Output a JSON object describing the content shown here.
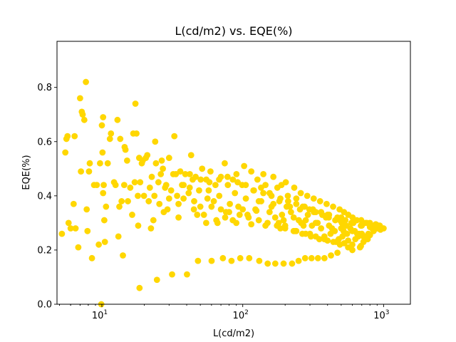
{
  "chart_data": {
    "type": "scatter",
    "title": "L(cd/m2) vs. EQE(%)",
    "xlabel": "L(cd/m2)",
    "ylabel": "EQE(%)",
    "xscale": "log",
    "xlim": [
      4.8,
      1550
    ],
    "ylim": [
      0,
      0.97
    ],
    "grid": false,
    "marker_color": "#FFD700",
    "x_tick_labels": [
      {
        "value": 10,
        "base": "10",
        "exp": "1"
      },
      {
        "value": 100,
        "base": "10",
        "exp": "2"
      },
      {
        "value": 1000,
        "base": "10",
        "exp": "3"
      }
    ],
    "y_tick_labels": [
      "0.0",
      "0.2",
      "0.4",
      "0.6",
      "0.8"
    ],
    "y_tick_values": [
      0.0,
      0.2,
      0.4,
      0.6,
      0.8
    ],
    "points": [
      [
        5.2,
        0.26
      ],
      [
        5.5,
        0.56
      ],
      [
        5.6,
        0.61
      ],
      [
        5.7,
        0.62
      ],
      [
        5.8,
        0.3
      ],
      [
        6.0,
        0.28
      ],
      [
        6.3,
        0.37
      ],
      [
        6.4,
        0.62
      ],
      [
        6.5,
        0.28
      ],
      [
        6.8,
        0.21
      ],
      [
        7.0,
        0.76
      ],
      [
        7.1,
        0.49
      ],
      [
        7.2,
        0.71
      ],
      [
        7.3,
        0.7
      ],
      [
        7.5,
        0.68
      ],
      [
        7.7,
        0.82
      ],
      [
        7.8,
        0.35
      ],
      [
        7.9,
        0.27
      ],
      [
        8.1,
        0.49
      ],
      [
        8.2,
        0.52
      ],
      [
        8.5,
        0.17
      ],
      [
        8.8,
        0.44
      ],
      [
        9.2,
        0.44
      ],
      [
        9.5,
        0.22
      ],
      [
        9.7,
        0.52
      ],
      [
        9.9,
        0.0
      ],
      [
        10.0,
        0.66
      ],
      [
        10.1,
        0.56
      ],
      [
        10.2,
        0.69
      ],
      [
        10.2,
        0.41
      ],
      [
        10.3,
        0.44
      ],
      [
        10.4,
        0.31
      ],
      [
        10.5,
        0.23
      ],
      [
        10.7,
        0.36
      ],
      [
        11.0,
        0.52
      ],
      [
        11.4,
        0.61
      ],
      [
        11.6,
        0.63
      ],
      [
        12.2,
        0.45
      ],
      [
        12.5,
        0.44
      ],
      [
        12.9,
        0.68
      ],
      [
        13.1,
        0.25
      ],
      [
        13.3,
        0.36
      ],
      [
        13.5,
        0.61
      ],
      [
        13.8,
        0.38
      ],
      [
        14.1,
        0.18
      ],
      [
        14.4,
        0.44
      ],
      [
        14.5,
        0.58
      ],
      [
        14.7,
        0.57
      ],
      [
        15.1,
        0.53
      ],
      [
        15.3,
        0.38
      ],
      [
        15.9,
        0.43
      ],
      [
        16.4,
        0.33
      ],
      [
        16.7,
        0.63
      ],
      [
        17.1,
        0.45
      ],
      [
        17.3,
        0.74
      ],
      [
        17.6,
        0.63
      ],
      [
        18.0,
        0.4
      ],
      [
        18.1,
        0.29
      ],
      [
        18.4,
        0.54
      ],
      [
        18.5,
        0.06
      ],
      [
        18.7,
        0.45
      ],
      [
        19.2,
        0.52
      ],
      [
        19.5,
        0.53
      ],
      [
        19.9,
        0.4
      ],
      [
        20.5,
        0.54
      ],
      [
        21.0,
        0.55
      ],
      [
        21.5,
        0.38
      ],
      [
        21.9,
        0.43
      ],
      [
        22.3,
        0.28
      ],
      [
        22.6,
        0.47
      ],
      [
        23.2,
        0.31
      ],
      [
        23.6,
        0.4
      ],
      [
        23.9,
        0.6
      ],
      [
        24.2,
        0.52
      ],
      [
        24.6,
        0.09
      ],
      [
        25.2,
        0.45
      ],
      [
        25.6,
        0.37
      ],
      [
        26.2,
        0.48
      ],
      [
        26.6,
        0.53
      ],
      [
        27.1,
        0.5
      ],
      [
        27.5,
        0.34
      ],
      [
        28.1,
        0.43
      ],
      [
        28.6,
        0.44
      ],
      [
        29.2,
        0.35
      ],
      [
        30.0,
        0.54
      ],
      [
        31.0,
        0.42
      ],
      [
        31.5,
        0.11
      ],
      [
        32.1,
        0.48
      ],
      [
        32.7,
        0.62
      ],
      [
        33.5,
        0.48
      ],
      [
        34.2,
        0.4
      ],
      [
        35.0,
        0.32
      ],
      [
        36.0,
        0.49
      ],
      [
        37.1,
        0.44
      ],
      [
        38.0,
        0.39
      ],
      [
        39.1,
        0.48
      ],
      [
        40.2,
        0.11
      ],
      [
        41.3,
        0.41
      ],
      [
        42.1,
        0.48
      ],
      [
        43.0,
        0.55
      ],
      [
        44.1,
        0.46
      ],
      [
        45.2,
        0.38
      ],
      [
        46.3,
        0.47
      ],
      [
        47.5,
        0.33
      ],
      [
        48.1,
        0.16
      ],
      [
        49.0,
        0.42
      ],
      [
        50.3,
        0.46
      ],
      [
        51.5,
        0.5
      ],
      [
        53.0,
        0.33
      ],
      [
        55.1,
        0.46
      ],
      [
        56.2,
        0.39
      ],
      [
        57.3,
        0.42
      ],
      [
        59.0,
        0.49
      ],
      [
        60.1,
        0.16
      ],
      [
        62.3,
        0.38
      ],
      [
        64.0,
        0.44
      ],
      [
        66.2,
        0.3
      ],
      [
        68.1,
        0.4
      ],
      [
        70.0,
        0.47
      ],
      [
        72.3,
        0.17
      ],
      [
        74.5,
        0.52
      ],
      [
        76.1,
        0.34
      ],
      [
        78.4,
        0.44
      ],
      [
        81.0,
        0.37
      ],
      [
        83.2,
        0.16
      ],
      [
        85.1,
        0.46
      ],
      [
        88.0,
        0.41
      ],
      [
        90.2,
        0.48
      ],
      [
        93.1,
        0.36
      ],
      [
        96.0,
        0.17
      ],
      [
        99.1,
        0.44
      ],
      [
        102.3,
        0.51
      ],
      [
        105.2,
        0.39
      ],
      [
        108.1,
        0.33
      ],
      [
        111.2,
        0.17
      ],
      [
        115.0,
        0.49
      ],
      [
        119.1,
        0.42
      ],
      [
        123.0,
        0.35
      ],
      [
        127.2,
        0.46
      ],
      [
        131.0,
        0.16
      ],
      [
        135.2,
        0.38
      ],
      [
        140.1,
        0.48
      ],
      [
        145.0,
        0.44
      ],
      [
        150.3,
        0.15
      ],
      [
        155.2,
        0.41
      ],
      [
        160.1,
        0.36
      ],
      [
        165.0,
        0.47
      ],
      [
        170.2,
        0.15
      ],
      [
        176.1,
        0.43
      ],
      [
        182.0,
        0.38
      ],
      [
        188.3,
        0.44
      ],
      [
        195.0,
        0.15
      ],
      [
        202.1,
        0.45
      ],
      [
        209.0,
        0.4
      ],
      [
        216.2,
        0.36
      ],
      [
        224.0,
        0.15
      ],
      [
        232.1,
        0.43
      ],
      [
        240.0,
        0.39
      ],
      [
        249.2,
        0.16
      ],
      [
        258.1,
        0.41
      ],
      [
        267.0,
        0.36
      ],
      [
        277.2,
        0.17
      ],
      [
        287.0,
        0.4
      ],
      [
        297.3,
        0.35
      ],
      [
        308.1,
        0.17
      ],
      [
        319.0,
        0.39
      ],
      [
        330.2,
        0.34
      ],
      [
        342.0,
        0.17
      ],
      [
        354.1,
        0.38
      ],
      [
        367.0,
        0.33
      ],
      [
        380.2,
        0.17
      ],
      [
        394.1,
        0.37
      ],
      [
        408.0,
        0.32
      ],
      [
        423.2,
        0.18
      ],
      [
        438.1,
        0.36
      ],
      [
        454.0,
        0.31
      ],
      [
        470.3,
        0.19
      ],
      [
        487.1,
        0.35
      ],
      [
        505.0,
        0.3
      ],
      [
        523.2,
        0.34
      ],
      [
        542.0,
        0.29
      ],
      [
        561.1,
        0.33
      ],
      [
        581.0,
        0.28
      ],
      [
        602.2,
        0.32
      ],
      [
        624.0,
        0.27
      ],
      [
        646.1,
        0.31
      ],
      [
        669.0,
        0.26
      ],
      [
        693.2,
        0.31
      ],
      [
        718.0,
        0.25
      ],
      [
        744.1,
        0.3
      ],
      [
        771.0,
        0.24
      ],
      [
        799.2,
        0.3
      ],
      [
        828.0,
        0.29
      ],
      [
        858.1,
        0.29
      ],
      [
        889.0,
        0.28
      ],
      [
        921.2,
        0.29
      ],
      [
        954.0,
        0.28
      ],
      [
        1000.0,
        0.28
      ],
      [
        120.0,
        0.42
      ],
      [
        140.0,
        0.41
      ],
      [
        160.0,
        0.4
      ],
      [
        185.0,
        0.39
      ],
      [
        210.0,
        0.38
      ],
      [
        240.0,
        0.37
      ],
      [
        275.0,
        0.36
      ],
      [
        315.0,
        0.35
      ],
      [
        360.0,
        0.34
      ],
      [
        410.0,
        0.33
      ],
      [
        470.0,
        0.32
      ],
      [
        535.0,
        0.31
      ],
      [
        610.0,
        0.3
      ],
      [
        700.0,
        0.29
      ],
      [
        800.0,
        0.285
      ],
      [
        910.0,
        0.28
      ],
      [
        110.0,
        0.32
      ],
      [
        130.0,
        0.31
      ],
      [
        150.0,
        0.3
      ],
      [
        175.0,
        0.29
      ],
      [
        200.0,
        0.28
      ],
      [
        230.0,
        0.27
      ],
      [
        265.0,
        0.26
      ],
      [
        305.0,
        0.25
      ],
      [
        350.0,
        0.24
      ],
      [
        400.0,
        0.235
      ],
      [
        460.0,
        0.23
      ],
      [
        525.0,
        0.225
      ],
      [
        600.0,
        0.22
      ],
      [
        690.0,
        0.215
      ],
      [
        100.0,
        0.35
      ],
      [
        125.0,
        0.345
      ],
      [
        155.0,
        0.34
      ],
      [
        190.0,
        0.33
      ],
      [
        230.0,
        0.32
      ],
      [
        280.0,
        0.31
      ],
      [
        340.0,
        0.3
      ],
      [
        410.0,
        0.29
      ],
      [
        500.0,
        0.28
      ],
      [
        600.0,
        0.27
      ],
      [
        700.0,
        0.26
      ],
      [
        800.0,
        0.255
      ],
      [
        130.0,
        0.38
      ],
      [
        165.0,
        0.37
      ],
      [
        205.0,
        0.36
      ],
      [
        255.0,
        0.35
      ],
      [
        320.0,
        0.34
      ],
      [
        400.0,
        0.33
      ],
      [
        500.0,
        0.32
      ],
      [
        620.0,
        0.31
      ],
      [
        760.0,
        0.3
      ],
      [
        880.0,
        0.295
      ],
      [
        90.0,
        0.3
      ],
      [
        115.0,
        0.295
      ],
      [
        145.0,
        0.29
      ],
      [
        185.0,
        0.28
      ],
      [
        235.0,
        0.27
      ],
      [
        300.0,
        0.26
      ],
      [
        380.0,
        0.25
      ],
      [
        480.0,
        0.24
      ],
      [
        560.0,
        0.235
      ],
      [
        60.0,
        0.36
      ],
      [
        70.0,
        0.35
      ],
      [
        80.0,
        0.34
      ],
      [
        95.0,
        0.33
      ],
      [
        55.0,
        0.3
      ],
      [
        65.0,
        0.31
      ],
      [
        75.0,
        0.32
      ],
      [
        85.0,
        0.31
      ],
      [
        45.0,
        0.35
      ],
      [
        50.0,
        0.36
      ],
      [
        35.0,
        0.37
      ],
      [
        38.0,
        0.44
      ],
      [
        42.0,
        0.43
      ],
      [
        30.0,
        0.39
      ],
      [
        58.0,
        0.45
      ],
      [
        68.0,
        0.46
      ],
      [
        78.0,
        0.47
      ],
      [
        92.0,
        0.45
      ],
      [
        105.0,
        0.44
      ],
      [
        135.0,
        0.43
      ],
      [
        250.0,
        0.31
      ],
      [
        330.0,
        0.3
      ],
      [
        430.0,
        0.28
      ],
      [
        520.0,
        0.27
      ],
      [
        650.0,
        0.26
      ],
      [
        740.0,
        0.25
      ],
      [
        850.0,
        0.27
      ],
      [
        950.0,
        0.275
      ],
      [
        270.0,
        0.29
      ],
      [
        360.0,
        0.28
      ],
      [
        450.0,
        0.27
      ],
      [
        550.0,
        0.26
      ],
      [
        660.0,
        0.25
      ],
      [
        780.0,
        0.26
      ],
      [
        290.0,
        0.33
      ],
      [
        390.0,
        0.32
      ],
      [
        490.0,
        0.31
      ],
      [
        590.0,
        0.3
      ],
      [
        690.0,
        0.29
      ],
      [
        830.0,
        0.28
      ],
      [
        940.0,
        0.29
      ],
      [
        220.0,
        0.34
      ],
      [
        195.0,
        0.31
      ],
      [
        170.0,
        0.32
      ],
      [
        260.0,
        0.3
      ],
      [
        310.0,
        0.29
      ],
      [
        420.0,
        0.26
      ],
      [
        510.0,
        0.25
      ],
      [
        630.0,
        0.24
      ],
      [
        720.0,
        0.23
      ],
      [
        680.0,
        0.21
      ],
      [
        600.0,
        0.2
      ],
      [
        560.0,
        0.21
      ],
      [
        490.0,
        0.22
      ],
      [
        440.0,
        0.23
      ],
      [
        380.0,
        0.24
      ],
      [
        330.0,
        0.25
      ],
      [
        280.0,
        0.26
      ],
      [
        240.0,
        0.27
      ],
      [
        200.0,
        0.29
      ],
      [
        180.0,
        0.3
      ]
    ]
  }
}
